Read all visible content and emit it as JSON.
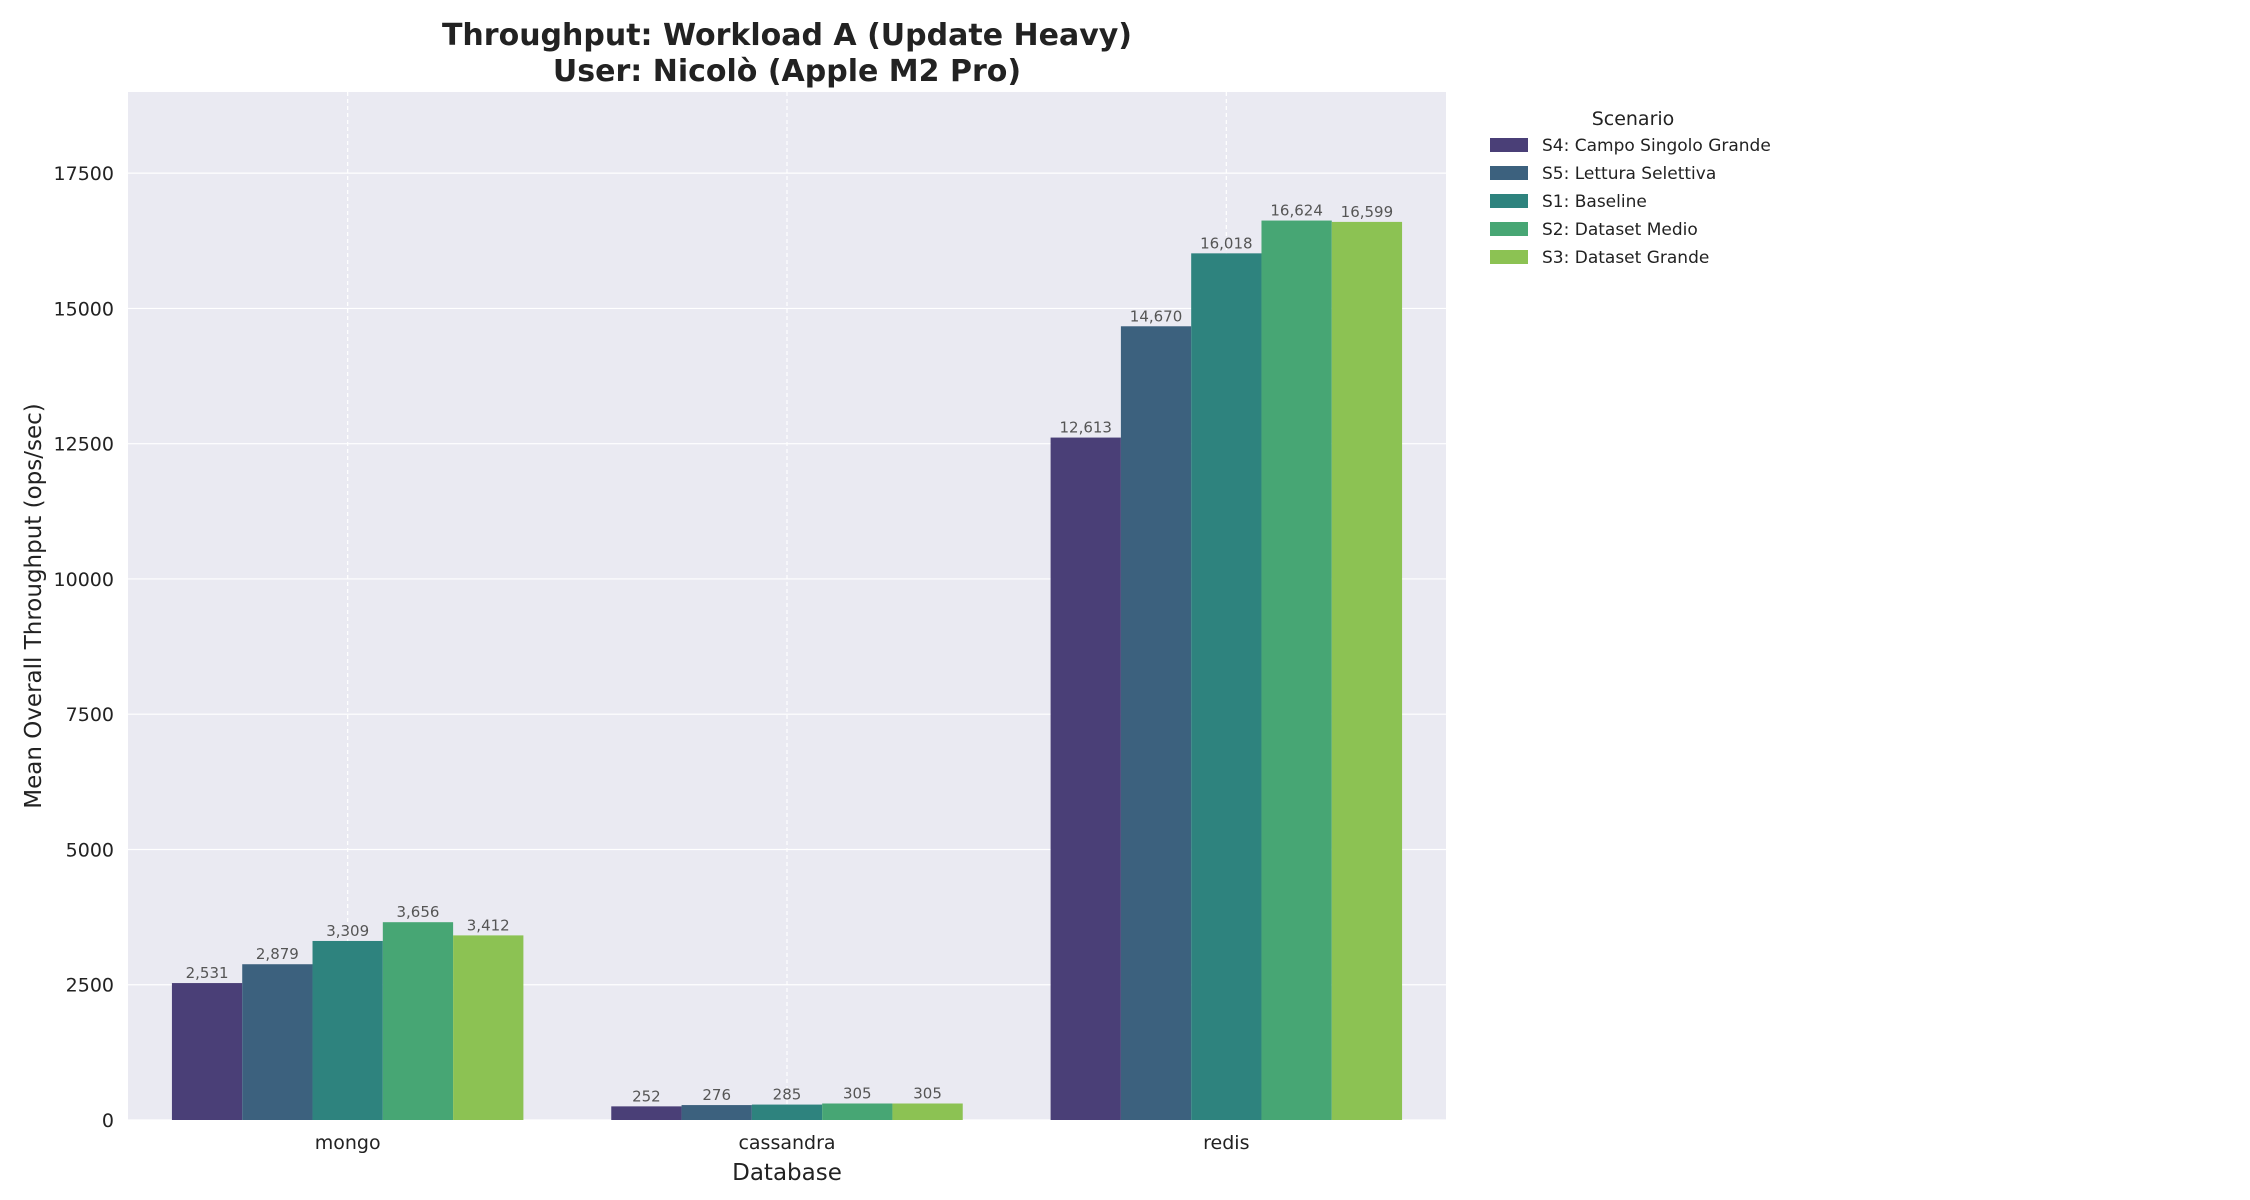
{
  "chart_data": {
    "type": "bar",
    "title_line1": "Throughput: Workload A (Update Heavy)",
    "title_line2": "User: Nicolò (Apple M2 Pro)",
    "xlabel": "Database",
    "ylabel": "Mean Overall Throughput (ops/sec)",
    "categories": [
      "mongo",
      "cassandra",
      "redis"
    ],
    "ylim": [
      0,
      19000
    ],
    "yticks": [
      0,
      2500,
      5000,
      7500,
      10000,
      12500,
      15000,
      17500
    ],
    "grid": true,
    "legend": {
      "title": "Scenario",
      "placement": "outside top-right"
    },
    "series": [
      {
        "name": "S4: Campo Singolo Grande",
        "color": "#4a3f77",
        "values": [
          2531,
          252,
          12613
        ],
        "labels": [
          "2,531",
          "252",
          "12,613"
        ]
      },
      {
        "name": "S5: Lettura Selettiva",
        "color": "#3c617e",
        "values": [
          2879,
          276,
          14670
        ],
        "labels": [
          "2,879",
          "276",
          "14,670"
        ]
      },
      {
        "name": "S1: Baseline",
        "color": "#2e837e",
        "values": [
          3309,
          285,
          16018
        ],
        "labels": [
          "3,309",
          "285",
          "16,018"
        ]
      },
      {
        "name": "S2: Dataset Medio",
        "color": "#47a674",
        "values": [
          3656,
          305,
          16624
        ],
        "labels": [
          "3,656",
          "305",
          "16,624"
        ]
      },
      {
        "name": "S3: Dataset Grande",
        "color": "#8cc253",
        "values": [
          3412,
          305,
          16599
        ],
        "labels": [
          "3,412",
          "305",
          "16,599"
        ]
      }
    ]
  }
}
